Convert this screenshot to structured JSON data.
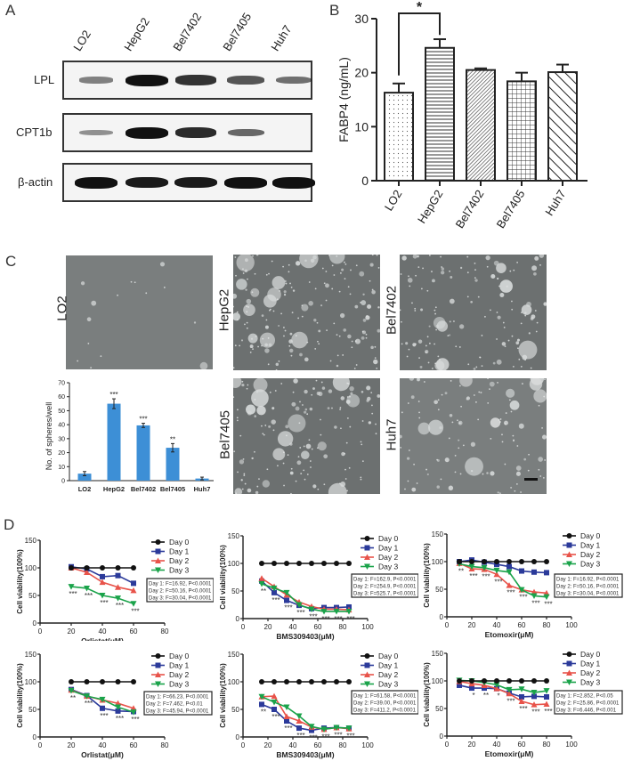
{
  "panels": {
    "A": {
      "letter": "A"
    },
    "B": {
      "letter": "B"
    },
    "C": {
      "letter": "C"
    },
    "D": {
      "letter": "D"
    }
  },
  "western_blot": {
    "lanes": [
      "LO2",
      "HepG2",
      "Bel7402",
      "Bel7405",
      "Huh7"
    ],
    "rows": [
      {
        "label": "LPL",
        "intensity": [
          0.35,
          1.0,
          0.8,
          0.6,
          0.45
        ]
      },
      {
        "label": "CPT1b",
        "intensity": [
          0.25,
          1.0,
          0.85,
          0.5,
          0.0
        ]
      },
      {
        "label": "β-actin",
        "intensity": [
          1.0,
          0.95,
          0.95,
          1.0,
          1.0
        ]
      }
    ]
  },
  "spheres": {
    "images": [
      {
        "label": "LO2"
      },
      {
        "label": "HepG2"
      },
      {
        "label": "Bel7402"
      },
      {
        "label": "Bel7405"
      },
      {
        "label": "Huh7"
      }
    ]
  },
  "chart_data": [
    {
      "id": "B",
      "type": "bar",
      "title": "",
      "xlabel": "",
      "ylabel": "FABP4 (ng/mL)",
      "categories": [
        "LO2",
        "HepG2",
        "Bel7402",
        "Bel7405",
        "Huh7"
      ],
      "values": [
        16.3,
        24.6,
        20.5,
        18.4,
        20.1
      ],
      "errors": [
        1.7,
        1.6,
        0.3,
        1.6,
        1.4
      ],
      "patterns": [
        "dots",
        "horizontal",
        "diagonal-fine",
        "grid",
        "diagonal-wide"
      ],
      "ylim": [
        0,
        30
      ],
      "yticks": [
        0,
        10,
        20,
        30
      ],
      "annotations": [
        {
          "text": "*",
          "between": [
            "LO2",
            "HepG2"
          ]
        }
      ]
    },
    {
      "id": "C",
      "type": "bar",
      "title": "",
      "xlabel": "",
      "ylabel": "No. of spheres/well",
      "categories": [
        "LO2",
        "HepG2",
        "Bel7402",
        "Bel7405",
        "Huh7"
      ],
      "values": [
        5,
        55,
        39.5,
        23.5,
        1.5
      ],
      "errors": [
        1.5,
        3.5,
        1.5,
        3,
        1
      ],
      "significance": [
        "",
        "***",
        "***",
        "**",
        ""
      ],
      "color": "#3d8fd6",
      "ylim": [
        0,
        70
      ],
      "yticks": [
        0,
        10,
        20,
        30,
        40,
        50,
        60,
        70
      ]
    },
    {
      "id": "D1",
      "type": "line",
      "xlabel": "Orlistat(μM)",
      "ylabel": "Cell viability(100%)",
      "xlim": [
        0,
        80
      ],
      "xticks": [
        0,
        20,
        40,
        60,
        80
      ],
      "ylim": [
        0,
        150
      ],
      "yticks": [
        0,
        50,
        100,
        150
      ],
      "x": [
        20,
        30,
        40,
        50,
        60
      ],
      "series": [
        {
          "name": "Day 0",
          "values": [
            100,
            100,
            100,
            100,
            100
          ]
        },
        {
          "name": "Day 1",
          "values": [
            102,
            98,
            84,
            86,
            72
          ]
        },
        {
          "name": "Day 2",
          "values": [
            100,
            92,
            74,
            65,
            59
          ]
        },
        {
          "name": "Day 3",
          "values": [
            66,
            63,
            50,
            45,
            35
          ]
        }
      ],
      "significance": [
        "***",
        "***",
        "***",
        "***",
        "***"
      ],
      "stats": [
        "Day 1: F=16.92, P<0.0001",
        "Day 2: F=50.16, P<0.0001",
        "Day 3: F=30.04, P<0.0001"
      ]
    },
    {
      "id": "D2",
      "type": "line",
      "xlabel": "BMS309403(μM)",
      "ylabel": "Cell viability(100%)",
      "xlim": [
        0,
        100
      ],
      "xticks": [
        0,
        20,
        40,
        60,
        80,
        100
      ],
      "ylim": [
        0,
        150
      ],
      "yticks": [
        0,
        50,
        100,
        150
      ],
      "x": [
        15,
        25,
        35,
        45,
        55,
        65,
        75,
        85
      ],
      "series": [
        {
          "name": "Day 0",
          "values": [
            100,
            100,
            100,
            100,
            100,
            100,
            100,
            100
          ]
        },
        {
          "name": "Day 1",
          "values": [
            68,
            47,
            33,
            24,
            18,
            20,
            20,
            21
          ]
        },
        {
          "name": "Day 2",
          "values": [
            73,
            58,
            43,
            30,
            22,
            17,
            17,
            16
          ]
        },
        {
          "name": "Day 3",
          "values": [
            63,
            55,
            47,
            25,
            17,
            13,
            13,
            13
          ]
        }
      ],
      "significance": [
        "**",
        "***",
        "***",
        "***",
        "***",
        "***",
        "***",
        "***"
      ],
      "stats": [
        "Day 1: F=162.9, P<0.0001",
        "Day 2: F=254.9, P<0.0001",
        "Day 3: F=525.7, P<0.0001"
      ]
    },
    {
      "id": "D3",
      "type": "line",
      "xlabel": "Etomoxir(μM)",
      "ylabel": "Cell viability(100%)",
      "xlim": [
        0,
        100
      ],
      "xticks": [
        0,
        20,
        40,
        60,
        80,
        100
      ],
      "ylim": [
        0,
        150
      ],
      "yticks": [
        0,
        50,
        100,
        150
      ],
      "x": [
        10,
        20,
        30,
        40,
        50,
        60,
        70,
        80
      ],
      "series": [
        {
          "name": "Day 0",
          "values": [
            100,
            100,
            100,
            100,
            100,
            100,
            100,
            100
          ]
        },
        {
          "name": "Day 1",
          "values": [
            100,
            103,
            99,
            95,
            91,
            83,
            81,
            80
          ]
        },
        {
          "name": "Day 2",
          "values": [
            97,
            87,
            86,
            77,
            57,
            49,
            45,
            43
          ]
        },
        {
          "name": "Day 3",
          "values": [
            96,
            91,
            89,
            84,
            81,
            49,
            38,
            36
          ]
        }
      ],
      "significance": [
        "**",
        "***",
        "***",
        "***",
        "***",
        "***",
        "***",
        "***"
      ],
      "stats": [
        "Day 1: F=16.92, P<0.0001",
        "Day 2: F=50.16, P<0.0001",
        "Day 3: F=30.04, P<0.0001"
      ]
    },
    {
      "id": "D4",
      "type": "line",
      "xlabel": "Orlistat(μM)",
      "ylabel": "Cell viability(100%)",
      "xlim": [
        0,
        80
      ],
      "xticks": [
        0,
        20,
        40,
        60,
        80
      ],
      "ylim": [
        0,
        150
      ],
      "yticks": [
        0,
        50,
        100,
        150
      ],
      "x": [
        20,
        30,
        40,
        50,
        60
      ],
      "series": [
        {
          "name": "Day 0",
          "values": [
            100,
            100,
            100,
            100,
            100
          ]
        },
        {
          "name": "Day 1",
          "values": [
            86,
            75,
            52,
            47,
            46
          ]
        },
        {
          "name": "Day 2",
          "values": [
            85,
            74,
            67,
            61,
            52
          ]
        },
        {
          "name": "Day 3",
          "values": [
            84,
            74,
            68,
            54,
            45
          ]
        }
      ],
      "significance": [
        "**",
        "***",
        "***",
        "***",
        "***"
      ],
      "stats": [
        "Day 1: F=66.23, P<0.0001",
        "Day 2: F=7.462, P<0.01",
        "Day 3: F=45.94, P<0.0001"
      ]
    },
    {
      "id": "D5",
      "type": "line",
      "xlabel": "BMS309403(μM)",
      "ylabel": "Cell viability(100%)",
      "xlim": [
        0,
        100
      ],
      "xticks": [
        0,
        20,
        40,
        60,
        80,
        100
      ],
      "ylim": [
        0,
        150
      ],
      "yticks": [
        0,
        50,
        100,
        150
      ],
      "x": [
        15,
        25,
        35,
        45,
        55,
        65,
        75,
        85
      ],
      "series": [
        {
          "name": "Day 0",
          "values": [
            100,
            100,
            100,
            100,
            100,
            100,
            100,
            100
          ]
        },
        {
          "name": "Day 1",
          "values": [
            59,
            50,
            29,
            16,
            12,
            16,
            17,
            16
          ]
        },
        {
          "name": "Day 2",
          "values": [
            73,
            74,
            37,
            29,
            18,
            14,
            17,
            15
          ]
        },
        {
          "name": "Day 3",
          "values": [
            73,
            63,
            54,
            38,
            19,
            14,
            17,
            16
          ]
        }
      ],
      "significance": [
        "**",
        "***",
        "***",
        "***",
        "***",
        "***",
        "***",
        "***"
      ],
      "stats": [
        "Day 1: F=61.58, P<0.0001",
        "Day 2: F=39.00, P<0.0001",
        "Day 3: F=411.2, P<0.0001"
      ]
    },
    {
      "id": "D6",
      "type": "line",
      "xlabel": "Etomoxir(μM)",
      "ylabel": "Cell viability(100%)",
      "xlim": [
        0,
        100
      ],
      "xticks": [
        0,
        20,
        40,
        60,
        80,
        100
      ],
      "ylim": [
        0,
        150
      ],
      "yticks": [
        0,
        50,
        100,
        150
      ],
      "x": [
        10,
        20,
        30,
        40,
        50,
        60,
        70,
        80
      ],
      "series": [
        {
          "name": "Day 0",
          "values": [
            100,
            100,
            100,
            100,
            100,
            100,
            100,
            100
          ]
        },
        {
          "name": "Day 1",
          "values": [
            92,
            87,
            87,
            86,
            78,
            71,
            72,
            71
          ]
        },
        {
          "name": "Day 2",
          "values": [
            99,
            95,
            92,
            86,
            77,
            63,
            57,
            58
          ]
        },
        {
          "name": "Day 3",
          "values": [
            101,
            100,
            97,
            93,
            84,
            85,
            79,
            82
          ]
        }
      ],
      "significance": [
        "",
        "*",
        "**",
        "*",
        "***",
        "***",
        "***",
        "***"
      ],
      "stats": [
        "Day 1: F=2.852, P<0.05",
        "Day 2: F=25.86, P<0.0001",
        "Day 3: F=6.446, P<0.001"
      ]
    }
  ],
  "series_colors": {
    "Day 0": "#111111",
    "Day 1": "#2b3a9a",
    "Day 2": "#e8534a",
    "Day 3": "#1aa34a"
  },
  "series_markers": {
    "Day 0": "circle",
    "Day 1": "square",
    "Day 2": "triangle-up",
    "Day 3": "triangle-down"
  }
}
